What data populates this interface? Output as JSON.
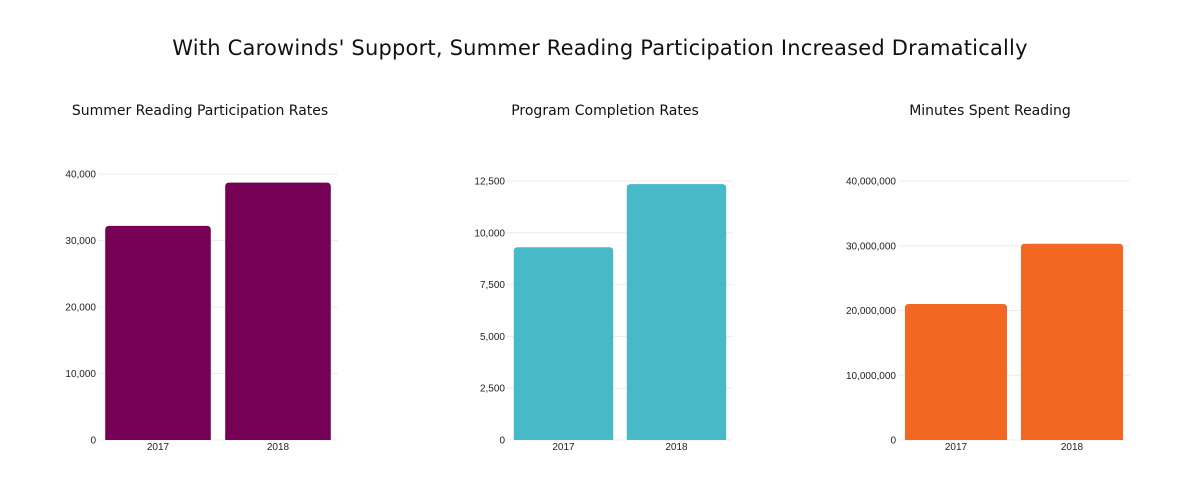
{
  "title": "With Carowinds' Support, Summer Reading Participation Increased Dramatically",
  "chart_data": [
    {
      "type": "bar",
      "title": "Summer Reading Participation Rates",
      "categories": [
        "2017",
        "2018"
      ],
      "values": [
        32200,
        38700
      ],
      "ylim": [
        0,
        40000
      ],
      "yticks": [
        0,
        10000,
        20000,
        30000,
        40000
      ],
      "ytick_labels": [
        "0",
        "10,000",
        "20,000",
        "30,000",
        "40,000"
      ],
      "color": "#760054",
      "grid": true
    },
    {
      "type": "bar",
      "title": "Program Completion Rates",
      "categories": [
        "2017",
        "2018"
      ],
      "values": [
        9300,
        12350
      ],
      "ylim": [
        0,
        12500
      ],
      "yticks": [
        0,
        2500,
        5000,
        7500,
        10000,
        12500
      ],
      "ytick_labels": [
        "0",
        "2,500",
        "5,000",
        "7,500",
        "10,000",
        "12,500"
      ],
      "color": "#48b9c7",
      "grid": true
    },
    {
      "type": "bar",
      "title": "Minutes Spent Reading",
      "categories": [
        "2017",
        "2018"
      ],
      "values": [
        21000000,
        30300000
      ],
      "ylim": [
        0,
        40000000
      ],
      "yticks": [
        0,
        10000000,
        20000000,
        30000000,
        40000000
      ],
      "ytick_labels": [
        "0",
        "10,000,000",
        "20,000,000",
        "30,000,000",
        "40,000,000"
      ],
      "color": "#f26722",
      "grid": true
    }
  ]
}
